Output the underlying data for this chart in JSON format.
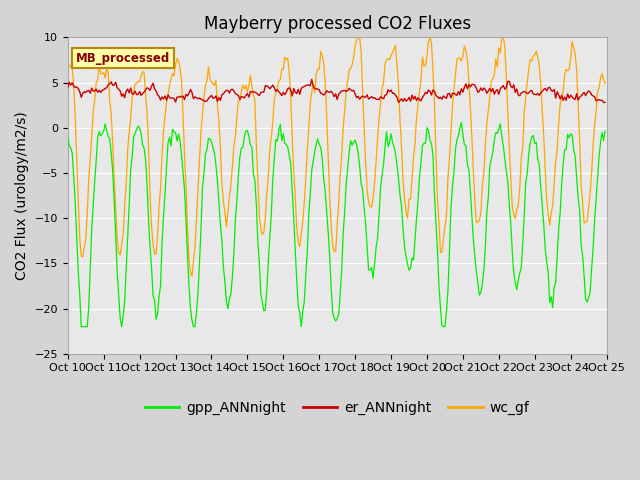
{
  "title": "Mayberry processed CO2 Fluxes",
  "ylabel": "CO2 Flux (urology/m2/s)",
  "ylim": [
    -25,
    10
  ],
  "yticks": [
    -25,
    -20,
    -15,
    -10,
    -5,
    0,
    5,
    10
  ],
  "n_days": 15,
  "n_per_day": 24,
  "xtick_labels": [
    "Oct 10",
    "Oct 11",
    "Oct 12",
    "Oct 13",
    "Oct 14",
    "Oct 15",
    "Oct 16",
    "Oct 17",
    "Oct 18",
    "Oct 19",
    "Oct 20",
    "Oct 21",
    "Oct 22",
    "Oct 23",
    "Oct 24",
    "Oct 25"
  ],
  "legend_box_label": "MB_processed",
  "legend_box_facecolor": "#ffffaa",
  "legend_box_edgecolor": "#b8860b",
  "color_gpp": "#00ee00",
  "color_er": "#cc0000",
  "color_wc": "#ffa500",
  "label_gpp": "gpp_ANNnight",
  "label_er": "er_ANNnight",
  "label_wc": "wc_gf",
  "background_color": "#e8e8e8",
  "grid_color": "#ffffff",
  "title_fontsize": 12,
  "ylabel_fontsize": 10,
  "tick_fontsize": 8,
  "legend_fontsize": 10
}
